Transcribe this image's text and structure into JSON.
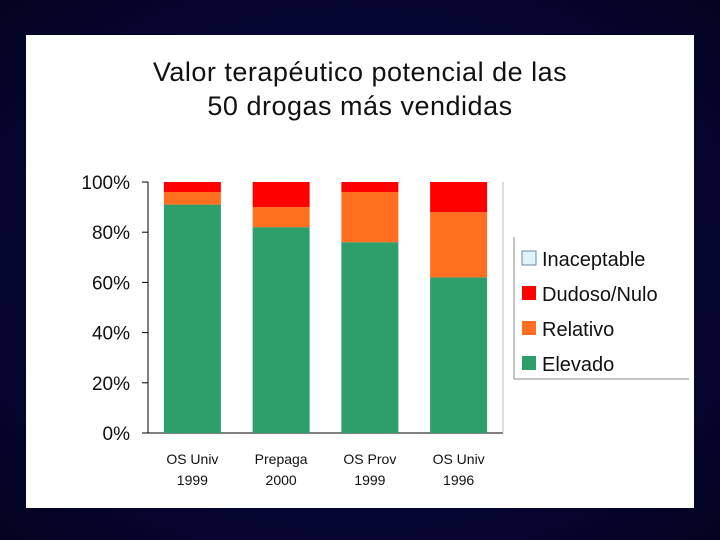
{
  "slide": {
    "title_line1": "Valor terapéutico potencial de las",
    "title_line2": "50 drogas más vendidas"
  },
  "chart_data": {
    "type": "bar",
    "stacked": true,
    "percent": true,
    "categories": [
      [
        "OS Univ",
        "1999"
      ],
      [
        "Prepaga",
        "2000"
      ],
      [
        "OS Prov",
        "1999"
      ],
      [
        "OS Univ",
        "1996"
      ]
    ],
    "series": [
      {
        "name": "Elevado",
        "color": "#2e9e6b",
        "values": [
          91,
          82,
          76,
          62
        ]
      },
      {
        "name": "Relativo",
        "color": "#ff6f1f",
        "values": [
          5,
          8,
          20,
          26
        ]
      },
      {
        "name": "Dudoso/Nulo",
        "color": "#ff0000",
        "values": [
          4,
          10,
          4,
          12
        ]
      },
      {
        "name": "Inaceptable",
        "color": "#ddf4fa",
        "values": [
          0,
          0,
          0,
          0
        ]
      }
    ],
    "legend_order": [
      "Inaceptable",
      "Dudoso/Nulo",
      "Relativo",
      "Elevado"
    ],
    "y_ticks": [
      "0%",
      "20%",
      "40%",
      "60%",
      "80%",
      "100%"
    ],
    "ylim": [
      0,
      100
    ],
    "legend_position": "right"
  }
}
